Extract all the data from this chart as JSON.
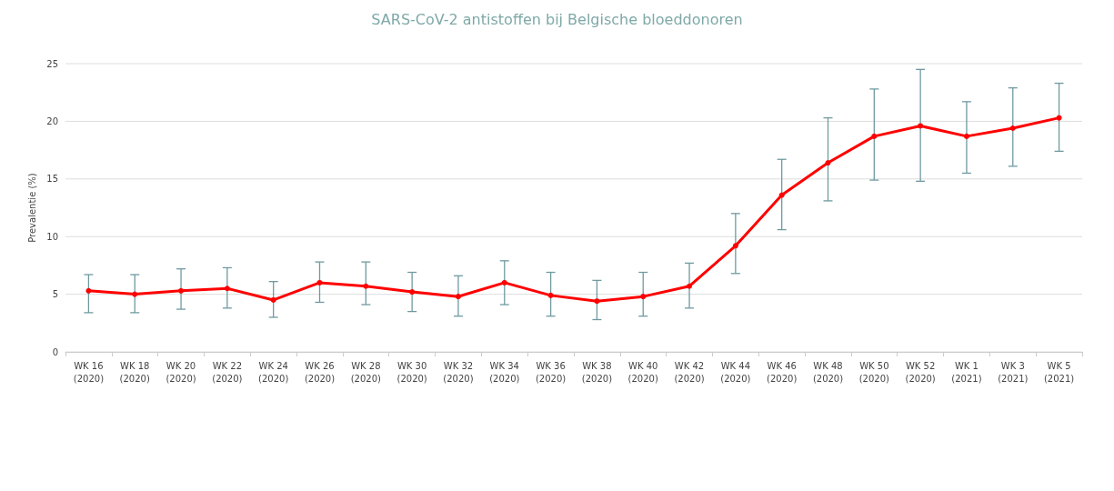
{
  "chart_data": {
    "type": "line",
    "title": "SARS-CoV-2 antistoffen bij Belgische bloeddonoren",
    "ylabel": "Prevalentie (%)",
    "categories": [
      "WK 16\n(2020)",
      "WK 18\n(2020)",
      "WK 20\n(2020)",
      "WK 22\n(2020)",
      "WK 24\n(2020)",
      "WK 26\n(2020)",
      "WK 28\n(2020)",
      "WK 30\n(2020)",
      "WK 32\n(2020)",
      "WK 34\n(2020)",
      "WK 36\n(2020)",
      "WK 38\n(2020)",
      "WK 40\n(2020)",
      "WK 42\n(2020)",
      "WK 44\n(2020)",
      "WK 46\n(2020)",
      "WK 48\n(2020)",
      "WK 50\n(2020)",
      "WK 52\n(2020)",
      "WK 1\n(2021)",
      "WK 3\n(2021)",
      "WK 5\n(2021)"
    ],
    "series": [
      {
        "color": "#ff0000",
        "values": [
          5.3,
          5.0,
          5.3,
          5.5,
          4.5,
          6.0,
          5.7,
          5.2,
          4.8,
          6.0,
          4.9,
          4.4,
          4.8,
          5.7,
          9.2,
          13.6,
          16.4,
          18.7,
          19.6,
          18.7,
          19.4,
          20.3
        ],
        "errors": [
          [
            3.4,
            6.7
          ],
          [
            3.4,
            6.7
          ],
          [
            3.7,
            7.2
          ],
          [
            3.8,
            7.3
          ],
          [
            3.0,
            6.1
          ],
          [
            4.3,
            7.8
          ],
          [
            4.1,
            7.8
          ],
          [
            3.5,
            6.9
          ],
          [
            3.1,
            6.6
          ],
          [
            4.1,
            7.9
          ],
          [
            3.1,
            6.9
          ],
          [
            2.8,
            6.2
          ],
          [
            3.1,
            6.9
          ],
          [
            3.8,
            7.7
          ],
          [
            6.8,
            12.0
          ],
          [
            10.6,
            16.7
          ],
          [
            13.1,
            20.3
          ],
          [
            14.9,
            22.8
          ],
          [
            14.8,
            24.5
          ],
          [
            15.5,
            21.7
          ],
          [
            16.1,
            22.9
          ],
          [
            17.4,
            23.3
          ]
        ]
      }
    ],
    "ylim": [
      0,
      25
    ],
    "yticks": [
      0,
      5,
      10,
      15,
      20,
      25
    ],
    "grid": "y",
    "marker": "circle",
    "line_style": "solid"
  }
}
